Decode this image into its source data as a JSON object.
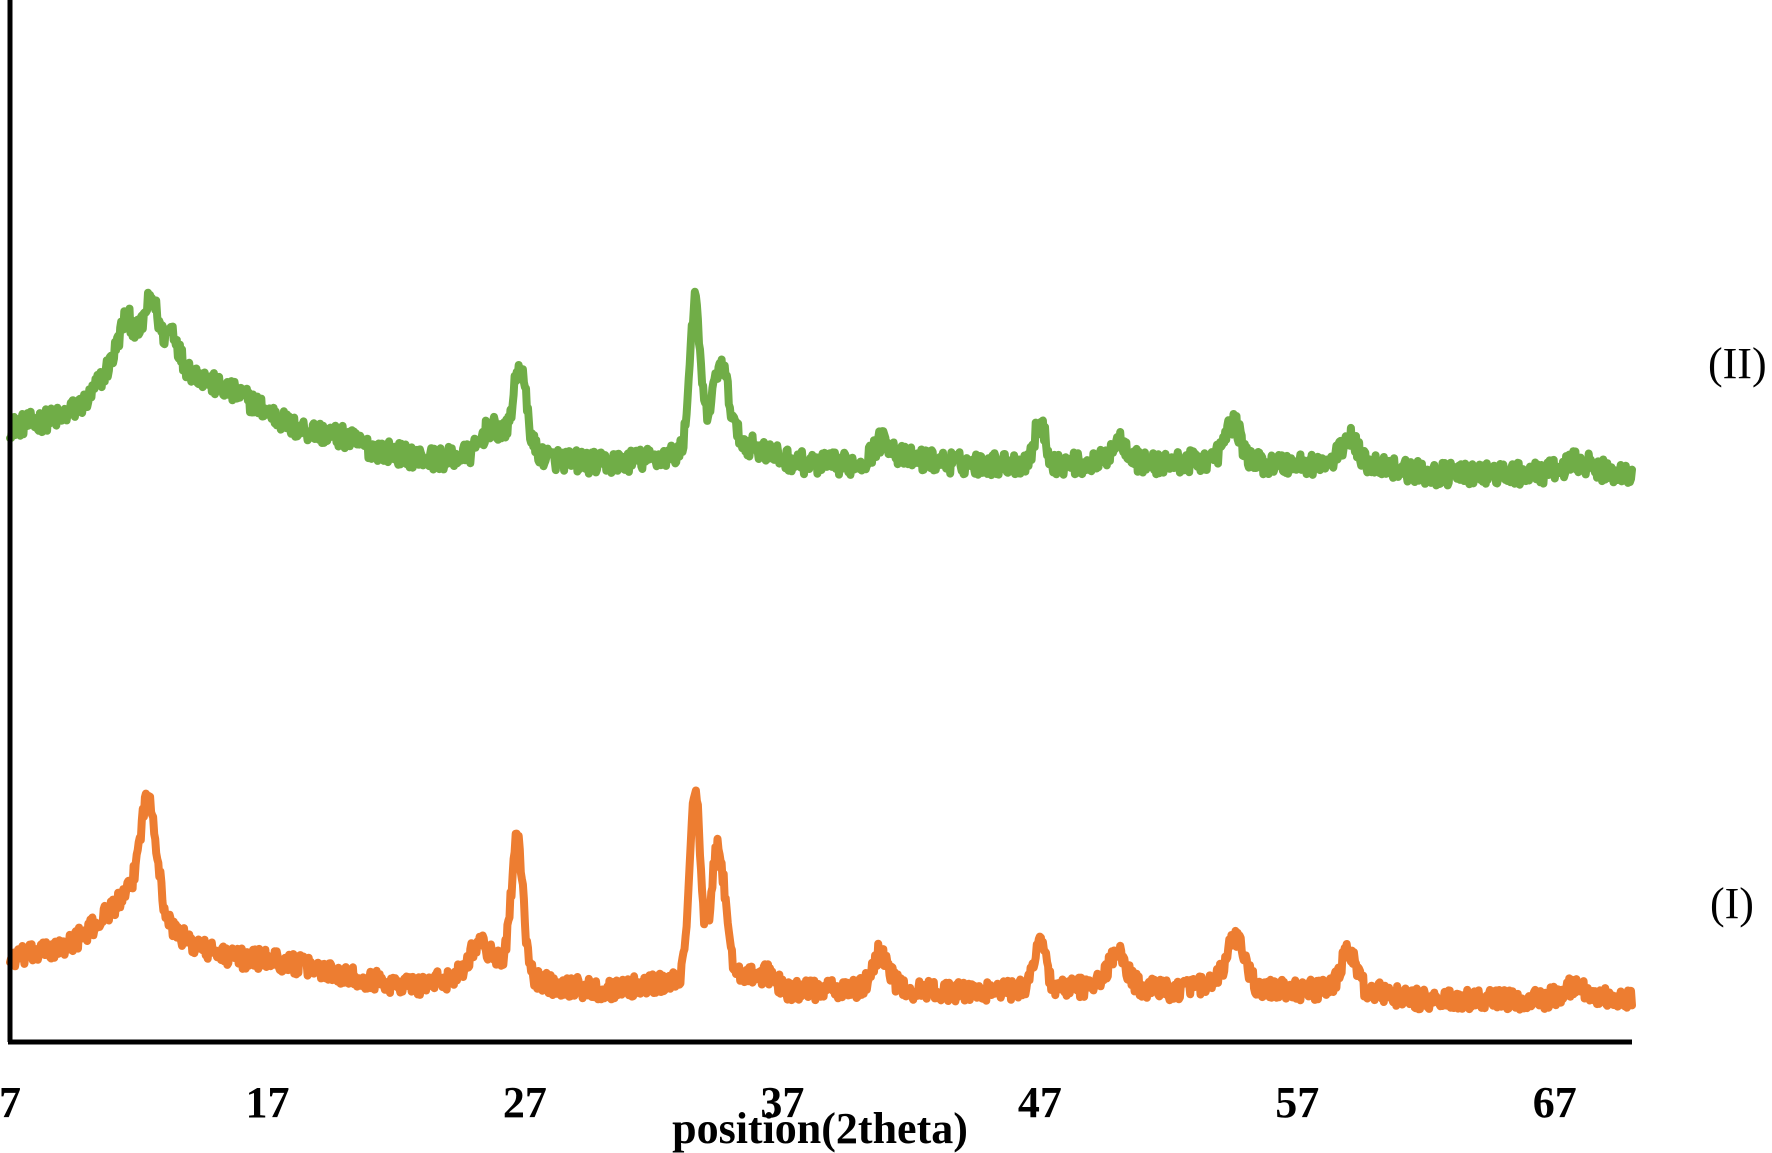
{
  "chart_data": {
    "type": "line",
    "xlabel": "position(2theta)",
    "ylabel": "",
    "xlim": [
      7,
      70
    ],
    "ylim": [
      0,
      100
    ],
    "x_ticks": [
      7,
      17,
      27,
      37,
      47,
      57,
      67
    ],
    "grid": false,
    "legend": "none",
    "series": [
      {
        "name": "(II)",
        "color": "#70ad47",
        "baseline_points": [
          [
            7,
            59
          ],
          [
            8,
            59.5
          ],
          [
            9,
            60
          ],
          [
            10,
            61.5
          ],
          [
            11,
            65.5
          ],
          [
            11.5,
            67
          ],
          [
            12,
            67.5
          ],
          [
            12.5,
            68
          ],
          [
            13,
            66.5
          ],
          [
            14,
            64.5
          ],
          [
            15,
            63
          ],
          [
            16,
            62
          ],
          [
            17,
            60.5
          ],
          [
            18,
            59
          ],
          [
            19,
            58.5
          ],
          [
            20,
            58
          ],
          [
            21,
            57
          ],
          [
            22,
            56.5
          ],
          [
            23,
            56
          ],
          [
            24,
            56
          ],
          [
            25,
            56.5
          ],
          [
            26,
            58
          ],
          [
            27,
            57
          ],
          [
            28,
            56
          ],
          [
            30,
            55.5
          ],
          [
            32,
            56
          ],
          [
            33,
            56.5
          ],
          [
            34,
            58
          ],
          [
            35,
            58
          ],
          [
            36,
            57
          ],
          [
            37,
            56
          ],
          [
            38,
            55.5
          ],
          [
            40,
            55.5
          ],
          [
            41,
            56
          ],
          [
            42,
            56
          ],
          [
            44,
            55.5
          ],
          [
            46,
            55.5
          ],
          [
            48,
            55.5
          ],
          [
            50,
            55.5
          ],
          [
            52,
            55.5
          ],
          [
            54,
            56
          ],
          [
            56,
            55.5
          ],
          [
            58,
            55.5
          ],
          [
            60,
            55.5
          ],
          [
            62,
            54.5
          ],
          [
            64,
            54.5
          ],
          [
            66,
            54.5
          ],
          [
            68,
            55
          ],
          [
            70,
            54.5
          ]
        ],
        "peaks": [
          {
            "x": 11.5,
            "height": 2.5,
            "width": 0.25
          },
          {
            "x": 12.5,
            "height": 3.5,
            "width": 0.25
          },
          {
            "x": 13.3,
            "height": 2.5,
            "width": 0.2
          },
          {
            "x": 25.6,
            "height": 1.5,
            "width": 0.3
          },
          {
            "x": 26.8,
            "height": 7.5,
            "width": 0.25
          },
          {
            "x": 33.6,
            "height": 13.5,
            "width": 0.2
          },
          {
            "x": 34.6,
            "height": 7.0,
            "width": 0.3
          },
          {
            "x": 40.9,
            "height": 1.8,
            "width": 0.35
          },
          {
            "x": 47.0,
            "height": 3.8,
            "width": 0.22
          },
          {
            "x": 50.1,
            "height": 2.2,
            "width": 0.35
          },
          {
            "x": 54.5,
            "height": 3.5,
            "width": 0.3
          },
          {
            "x": 59.0,
            "height": 2.5,
            "width": 0.3
          },
          {
            "x": 67.9,
            "height": 0.8,
            "width": 0.4
          }
        ],
        "noise": 1.1
      },
      {
        "name": "(I)",
        "color": "#ed7d31",
        "baseline_points": [
          [
            7,
            8
          ],
          [
            8,
            8.5
          ],
          [
            9,
            9
          ],
          [
            10,
            10.5
          ],
          [
            11,
            13
          ],
          [
            12,
            15
          ],
          [
            13,
            11.5
          ],
          [
            14,
            9.5
          ],
          [
            15,
            8.5
          ],
          [
            16,
            8
          ],
          [
            17,
            8
          ],
          [
            18,
            7.5
          ],
          [
            19,
            7
          ],
          [
            20,
            6.5
          ],
          [
            21,
            6
          ],
          [
            22,
            5.5
          ],
          [
            23,
            5.5
          ],
          [
            24,
            6
          ],
          [
            25,
            7.5
          ],
          [
            26,
            8
          ],
          [
            27,
            6.5
          ],
          [
            28,
            5.5
          ],
          [
            30,
            5
          ],
          [
            32,
            5.5
          ],
          [
            33,
            6
          ],
          [
            34,
            7
          ],
          [
            35,
            7
          ],
          [
            36,
            6
          ],
          [
            37,
            5
          ],
          [
            38,
            5
          ],
          [
            40,
            5
          ],
          [
            41,
            5.5
          ],
          [
            42,
            5
          ],
          [
            44,
            4.8
          ],
          [
            46,
            5
          ],
          [
            48,
            5.2
          ],
          [
            50,
            5.5
          ],
          [
            52,
            5
          ],
          [
            54,
            5.5
          ],
          [
            56,
            5
          ],
          [
            58,
            5
          ],
          [
            60,
            4.8
          ],
          [
            62,
            4
          ],
          [
            64,
            4
          ],
          [
            66,
            4
          ],
          [
            68,
            4.5
          ],
          [
            70,
            4
          ]
        ],
        "peaks": [
          {
            "x": 12.4,
            "height": 10.0,
            "width": 0.3
          },
          {
            "x": 25.2,
            "height": 2.0,
            "width": 0.3
          },
          {
            "x": 26.7,
            "height": 12.5,
            "width": 0.22
          },
          {
            "x": 33.6,
            "height": 18.0,
            "width": 0.2
          },
          {
            "x": 34.5,
            "height": 12.0,
            "width": 0.25
          },
          {
            "x": 36.5,
            "height": 1.0,
            "width": 0.3
          },
          {
            "x": 40.8,
            "height": 3.2,
            "width": 0.3
          },
          {
            "x": 47.0,
            "height": 5.0,
            "width": 0.22
          },
          {
            "x": 50.0,
            "height": 3.0,
            "width": 0.35
          },
          {
            "x": 54.6,
            "height": 4.5,
            "width": 0.35
          },
          {
            "x": 59.0,
            "height": 3.8,
            "width": 0.3
          },
          {
            "x": 67.8,
            "height": 1.0,
            "width": 0.4
          }
        ],
        "noise": 1.0
      }
    ]
  }
}
